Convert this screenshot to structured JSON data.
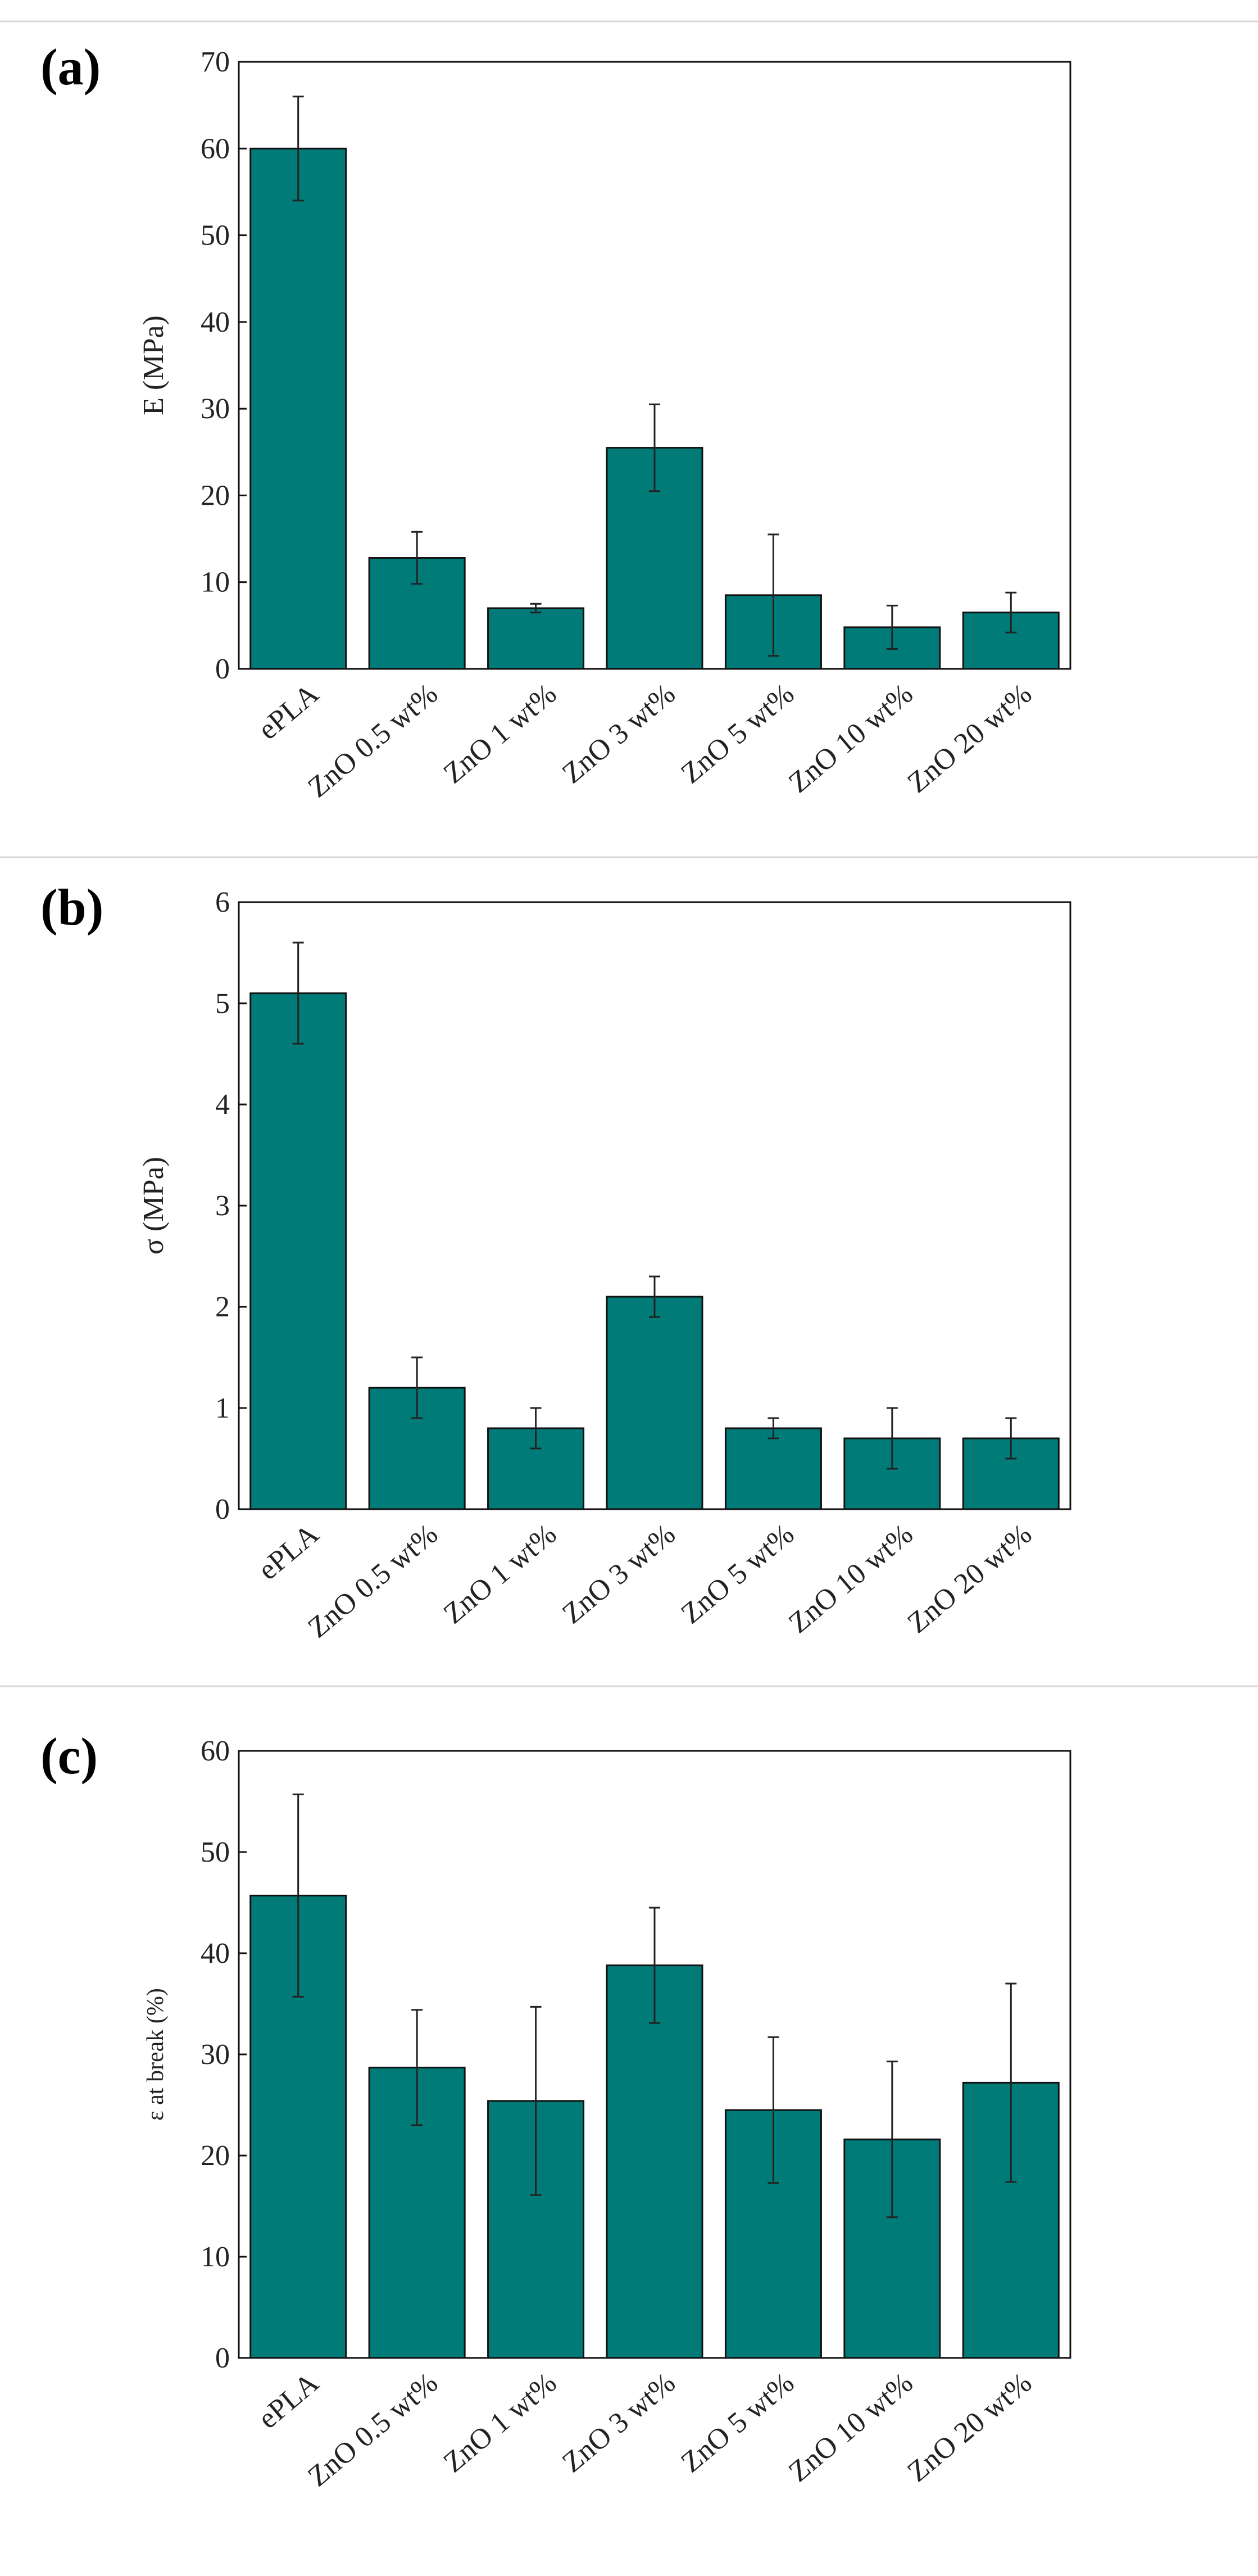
{
  "figure": {
    "bar_color": "#007b78",
    "bar_edge_color": "#111111",
    "panel_divider_color": "#d8d8d8"
  },
  "chart_data": [
    {
      "type": "bar",
      "panel_label": "(a)",
      "title": "",
      "xlabel": "",
      "ylabel": "E (MPa)",
      "categories": [
        "ePLA",
        "ZnO 0.5 wt%",
        "ZnO 1 wt%",
        "ZnO 3 wt%",
        "ZnO 5 wt%",
        "ZnO 10 wt%",
        "ZnO 20 wt%"
      ],
      "values": [
        60,
        12.8,
        7.0,
        25.5,
        8.5,
        4.8,
        6.5
      ],
      "errors": [
        6,
        3,
        0.5,
        5,
        7,
        2.5,
        2.3
      ],
      "ylim": [
        0,
        70
      ],
      "yticks": [
        0,
        10,
        20,
        30,
        40,
        50,
        60,
        70
      ],
      "grid": false
    },
    {
      "type": "bar",
      "panel_label": "(b)",
      "title": "",
      "xlabel": "",
      "ylabel": "σ (MPa)",
      "categories": [
        "ePLA",
        "ZnO 0.5 wt%",
        "ZnO 1 wt%",
        "ZnO 3 wt%",
        "ZnO 5 wt%",
        "ZnO 10 wt%",
        "ZnO 20 wt%"
      ],
      "values": [
        5.1,
        1.2,
        0.8,
        2.1,
        0.8,
        0.7,
        0.7
      ],
      "errors": [
        0.5,
        0.3,
        0.2,
        0.2,
        0.1,
        0.3,
        0.2
      ],
      "ylim": [
        0,
        6
      ],
      "yticks": [
        0,
        1,
        2,
        3,
        4,
        5,
        6
      ],
      "grid": false
    },
    {
      "type": "bar",
      "panel_label": "(c)",
      "title": "",
      "xlabel": "",
      "ylabel": "ε at break (%)",
      "categories": [
        "ePLA",
        "ZnO 0.5 wt%",
        "ZnO 1 wt%",
        "ZnO 3 wt%",
        "ZnO 5 wt%",
        "ZnO 10 wt%",
        "ZnO 20 wt%"
      ],
      "values": [
        45.7,
        28.7,
        25.4,
        38.8,
        24.5,
        21.6,
        27.2
      ],
      "errors": [
        10,
        5.7,
        9.3,
        5.7,
        7.2,
        7.7,
        9.8
      ],
      "ylim": [
        0,
        60
      ],
      "yticks": [
        0,
        10,
        20,
        30,
        40,
        50,
        60
      ],
      "grid": false
    }
  ]
}
